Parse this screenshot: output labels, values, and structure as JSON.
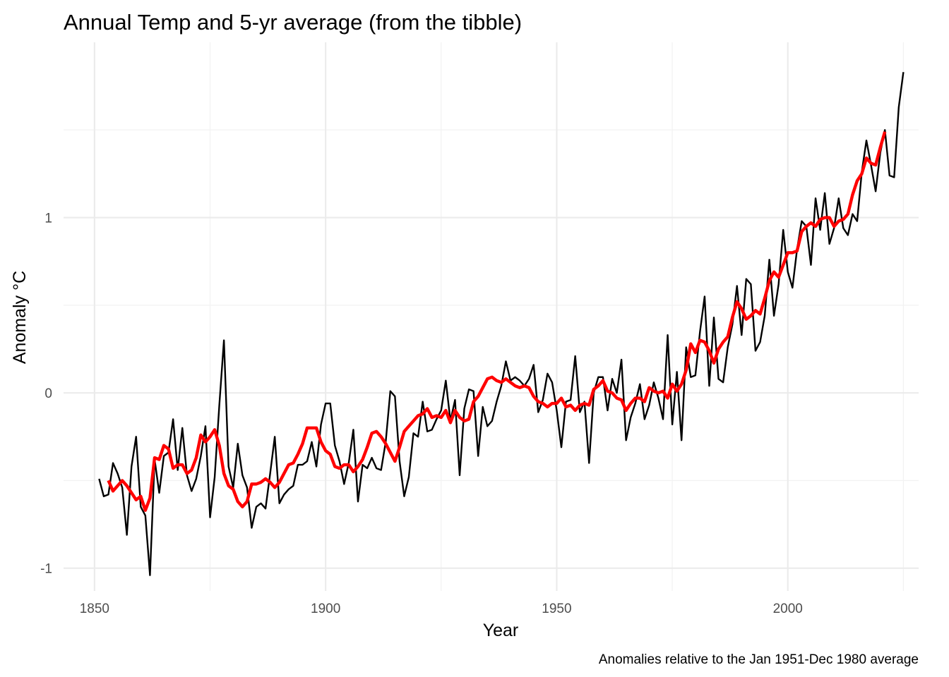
{
  "chart_data": {
    "type": "line",
    "title": "Annual Temp and 5-yr average (from the tibble)",
    "xlabel": "Year",
    "ylabel": "Anomaly °C",
    "caption": "Anomalies relative to the Jan 1951-Dec 1980 average",
    "xlim": [
      1843.3,
      1331.4
    ],
    "x_ticks": [
      1850,
      1900,
      1950,
      2000
    ],
    "x_tick_labels": [
      "1850",
      "1900",
      "1950",
      "2000"
    ],
    "ylim": [
      -1.13,
      2.0
    ],
    "y_ticks": [
      -1,
      0,
      1
    ],
    "y_tick_labels": [
      "-1",
      "0",
      "1"
    ],
    "grid": true,
    "legend": "none",
    "colors": {
      "annual": "#000000",
      "avg5": "#ff0000"
    },
    "series": [
      {
        "key": "annual",
        "start_year": 1851,
        "values": [
          -0.49,
          -0.59,
          -0.58,
          -0.4,
          -0.46,
          -0.54,
          -0.81,
          -0.42,
          -0.25,
          -0.65,
          -0.7,
          -1.04,
          -0.38,
          -0.57,
          -0.36,
          -0.34,
          -0.15,
          -0.44,
          -0.2,
          -0.47,
          -0.56,
          -0.49,
          -0.36,
          -0.19,
          -0.71,
          -0.48,
          -0.07,
          0.3,
          -0.42,
          -0.54,
          -0.29,
          -0.47,
          -0.54,
          -0.77,
          -0.65,
          -0.63,
          -0.66,
          -0.46,
          -0.25,
          -0.63,
          -0.58,
          -0.55,
          -0.53,
          -0.41,
          -0.41,
          -0.39,
          -0.28,
          -0.42,
          -0.18,
          -0.06,
          -0.06,
          -0.3,
          -0.39,
          -0.52,
          -0.4,
          -0.21,
          -0.62,
          -0.41,
          -0.43,
          -0.37,
          -0.43,
          -0.44,
          -0.28,
          0.01,
          -0.02,
          -0.39,
          -0.59,
          -0.48,
          -0.23,
          -0.25,
          -0.05,
          -0.22,
          -0.21,
          -0.15,
          -0.1,
          0.07,
          -0.16,
          -0.04,
          -0.47,
          -0.09,
          0.02,
          0.01,
          -0.36,
          -0.08,
          -0.19,
          -0.16,
          -0.05,
          0.04,
          0.18,
          0.07,
          0.09,
          0.07,
          0.04,
          0.08,
          0.16,
          -0.11,
          -0.04,
          0.11,
          0.06,
          -0.1,
          -0.31,
          -0.05,
          -0.04,
          0.21,
          -0.11,
          -0.05,
          -0.4,
          0.0,
          0.09,
          0.09,
          -0.1,
          0.08,
          0.0,
          0.19,
          -0.27,
          -0.14,
          -0.06,
          0.05,
          -0.15,
          -0.07,
          0.06,
          -0.03,
          -0.15,
          0.33,
          -0.18,
          0.12,
          -0.27,
          0.26,
          0.09,
          0.1,
          0.35,
          0.55,
          0.04,
          0.43,
          0.08,
          0.06,
          0.26,
          0.39,
          0.61,
          0.33,
          0.65,
          0.62,
          0.24,
          0.29,
          0.44,
          0.76,
          0.44,
          0.62,
          0.93,
          0.69,
          0.6,
          0.82,
          0.98,
          0.95,
          0.73,
          1.11,
          0.93,
          1.14,
          0.85,
          0.94,
          1.11,
          0.94,
          0.9,
          1.02,
          0.98,
          1.26,
          1.44,
          1.3,
          1.15,
          1.37,
          1.5,
          1.24,
          1.23,
          1.63,
          1.83
        ]
      },
      {
        "key": "avg5",
        "start_year": 1853,
        "values": [
          -0.5,
          -0.56,
          -0.53,
          -0.5,
          -0.53,
          -0.57,
          -0.61,
          -0.59,
          -0.67,
          -0.6,
          -0.37,
          -0.38,
          -0.3,
          -0.32,
          -0.43,
          -0.41,
          -0.41,
          -0.46,
          -0.44,
          -0.37,
          -0.24,
          -0.28,
          -0.25,
          -0.21,
          -0.3,
          -0.46,
          -0.53,
          -0.55,
          -0.62,
          -0.65,
          -0.62,
          -0.52,
          -0.52,
          -0.51,
          -0.49,
          -0.51,
          -0.54,
          -0.51,
          -0.46,
          -0.41,
          -0.4,
          -0.35,
          -0.29,
          -0.2,
          -0.2,
          -0.2,
          -0.28,
          -0.33,
          -0.35,
          -0.42,
          -0.43,
          -0.41,
          -0.41,
          -0.45,
          -0.42,
          -0.38,
          -0.31,
          -0.23,
          -0.22,
          -0.25,
          -0.29,
          -0.34,
          -0.39,
          -0.31,
          -0.22,
          -0.19,
          -0.16,
          -0.13,
          -0.12,
          -0.09,
          -0.14,
          -0.13,
          -0.14,
          -0.1,
          -0.17,
          -0.1,
          -0.14,
          -0.16,
          -0.15,
          -0.05,
          -0.02,
          0.03,
          0.08,
          0.09,
          0.07,
          0.06,
          0.08,
          0.06,
          0.04,
          0.03,
          0.04,
          0.03,
          -0.02,
          -0.05,
          -0.06,
          -0.08,
          -0.06,
          -0.06,
          -0.03,
          -0.08,
          -0.07,
          -0.1,
          -0.07,
          -0.06,
          -0.07,
          0.02,
          0.04,
          0.07,
          0.01,
          0.0,
          -0.03,
          -0.04,
          -0.1,
          -0.06,
          -0.03,
          -0.03,
          -0.05,
          0.03,
          0.01,
          0.0,
          0.01,
          -0.03,
          0.05,
          0.01,
          0.05,
          0.13,
          0.28,
          0.23,
          0.3,
          0.29,
          0.24,
          0.17,
          0.25,
          0.29,
          0.32,
          0.43,
          0.52,
          0.48,
          0.42,
          0.44,
          0.47,
          0.45,
          0.54,
          0.64,
          0.69,
          0.66,
          0.73,
          0.8,
          0.8,
          0.81,
          0.92,
          0.95,
          0.97,
          0.95,
          0.99,
          1.0,
          1.0,
          0.95,
          0.98,
          0.99,
          1.02,
          1.13,
          1.21,
          1.25,
          1.34,
          1.31,
          1.3,
          1.4,
          1.49
        ]
      }
    ]
  }
}
